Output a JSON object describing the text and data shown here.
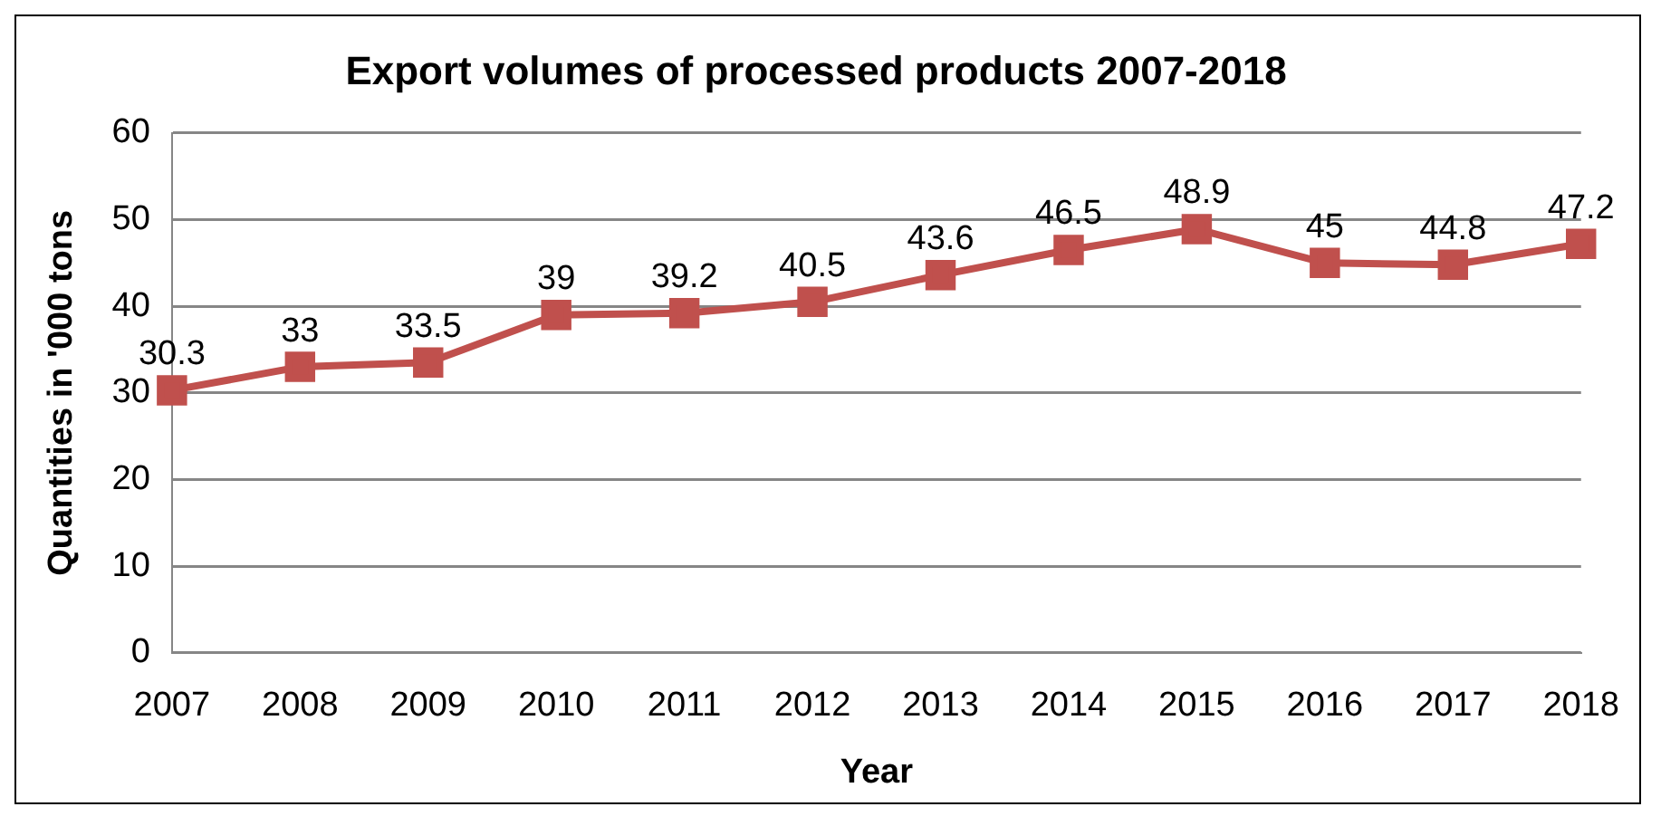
{
  "chart_data": {
    "type": "line",
    "title": "Export volumes of processed products 2007-2018",
    "xlabel": "Year",
    "ylabel": "Quantities in '000 tons",
    "categories": [
      "2007",
      "2008",
      "2009",
      "2010",
      "2011",
      "2012",
      "2013",
      "2014",
      "2015",
      "2016",
      "2017",
      "2018"
    ],
    "series": [
      {
        "color": "#c0504d",
        "values": [
          30.3,
          33,
          33.5,
          39,
          39.2,
          40.5,
          43.6,
          46.5,
          48.9,
          45,
          44.8,
          47.2
        ]
      }
    ],
    "ylim": [
      0,
      60
    ],
    "yticks": [
      0,
      10,
      20,
      30,
      40,
      50,
      60
    ],
    "grid": "y",
    "legend": false,
    "marker": "square",
    "line_style": "solid",
    "data_labels": true
  }
}
